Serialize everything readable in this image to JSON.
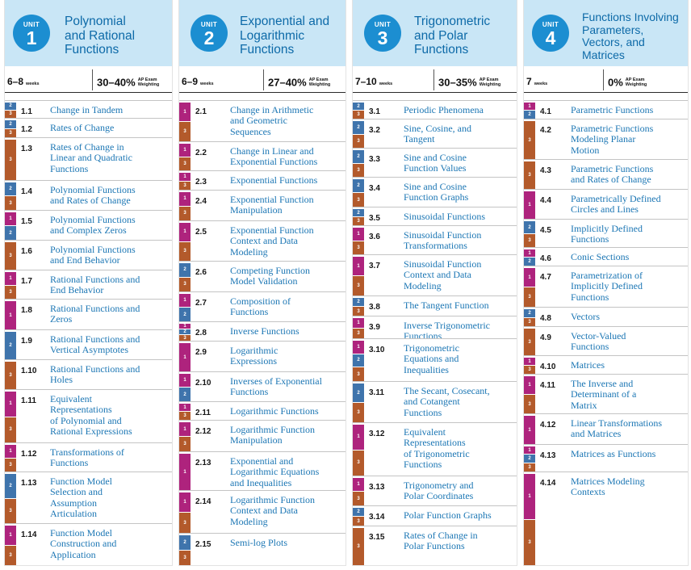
{
  "units": [
    {
      "unit_label": "UNIT",
      "number": "1",
      "title_lines": [
        "Polynomial",
        "and Rational",
        "Functions"
      ],
      "weeks": "6–8",
      "weeks_label": "weeks",
      "weighting": "30–40%",
      "weighting_label": [
        "AP Exam",
        "Weighting"
      ],
      "topics": [
        {
          "num": "1.1",
          "lines": [
            "Change in Tandem"
          ],
          "skills": [
            "2",
            "3"
          ]
        },
        {
          "num": "1.2",
          "lines": [
            "Rates of Change"
          ],
          "skills": [
            "2",
            "3"
          ]
        },
        {
          "num": "1.3",
          "lines": [
            "Rates of Change in",
            "Linear and Quadratic",
            "Functions"
          ],
          "skills": [
            "3"
          ]
        },
        {
          "num": "1.4",
          "lines": [
            "Polynomial Functions",
            "and Rates of Change"
          ],
          "skills": [
            "2",
            "3"
          ]
        },
        {
          "num": "1.5",
          "lines": [
            "Polynomial Functions",
            "and Complex Zeros"
          ],
          "skills": [
            "1",
            "2"
          ]
        },
        {
          "num": "1.6",
          "lines": [
            "Polynomial Functions",
            "and End Behavior"
          ],
          "skills": [
            "3"
          ]
        },
        {
          "num": "1.7",
          "lines": [
            "Rational Functions and",
            "End Behavior"
          ],
          "skills": [
            "1",
            "3"
          ]
        },
        {
          "num": "1.8",
          "lines": [
            "Rational Functions and",
            "Zeros"
          ],
          "skills": [
            "1"
          ]
        },
        {
          "num": "1.9",
          "lines": [
            "Rational Functions and",
            "Vertical Asymptotes"
          ],
          "skills": [
            "2"
          ]
        },
        {
          "num": "1.10",
          "lines": [
            "Rational Functions and",
            "Holes"
          ],
          "skills": [
            "3"
          ]
        },
        {
          "num": "1.11",
          "lines": [
            "Equivalent",
            "Representations",
            "of Polynomial and",
            "Rational Expressions"
          ],
          "skills": [
            "1",
            "3"
          ]
        },
        {
          "num": "1.12",
          "lines": [
            "Transformations of",
            "Functions"
          ],
          "skills": [
            "1",
            "3"
          ]
        },
        {
          "num": "1.13",
          "lines": [
            "Function Model",
            "Selection and",
            "Assumption",
            "Articulation"
          ],
          "skills": [
            "2",
            "3"
          ]
        },
        {
          "num": "1.14",
          "lines": [
            "Function Model",
            "Construction and",
            "Application"
          ],
          "skills": [
            "1",
            "3"
          ]
        }
      ]
    },
    {
      "unit_label": "UNIT",
      "number": "2",
      "title_lines": [
        "Exponential and",
        "Logarithmic",
        "Functions"
      ],
      "weeks": "6–9",
      "weeks_label": "weeks",
      "weighting": "27–40%",
      "weighting_label": [
        "AP Exam",
        "Weighting"
      ],
      "topics": [
        {
          "num": "2.1",
          "lines": [
            "Change in Arithmetic",
            "and Geometric",
            "Sequences"
          ],
          "skills": [
            "1",
            "3"
          ]
        },
        {
          "num": "2.2",
          "lines": [
            "Change in Linear and",
            "Exponential Functions"
          ],
          "skills": [
            "1",
            "3"
          ]
        },
        {
          "num": "2.3",
          "lines": [
            "Exponential Functions"
          ],
          "skills": [
            "1",
            "3"
          ]
        },
        {
          "num": "2.4",
          "lines": [
            "Exponential Function",
            "Manipulation"
          ],
          "skills": [
            "1",
            "3"
          ]
        },
        {
          "num": "2.5",
          "lines": [
            "Exponential Function",
            "Context and Data",
            "Modeling"
          ],
          "skills": [
            "1",
            "3"
          ]
        },
        {
          "num": "2.6",
          "lines": [
            "Competing Function",
            "Model Validation"
          ],
          "skills": [
            "2",
            "3"
          ]
        },
        {
          "num": "2.7",
          "lines": [
            "Composition of",
            "Functions"
          ],
          "skills": [
            "1",
            "2"
          ]
        },
        {
          "num": "2.8",
          "lines": [
            "Inverse Functions"
          ],
          "skills": [
            "1",
            "2",
            "3"
          ]
        },
        {
          "num": "2.9",
          "lines": [
            "Logarithmic",
            "Expressions"
          ],
          "skills": [
            "1"
          ]
        },
        {
          "num": "2.10",
          "lines": [
            "Inverses of Exponential",
            "Functions"
          ],
          "skills": [
            "1",
            "2"
          ]
        },
        {
          "num": "2.11",
          "lines": [
            "Logarithmic Functions"
          ],
          "skills": [
            "1",
            "3"
          ]
        },
        {
          "num": "2.12",
          "lines": [
            "Logarithmic Function",
            "Manipulation"
          ],
          "skills": [
            "1",
            "3"
          ]
        },
        {
          "num": "2.13",
          "lines": [
            "Exponential and",
            "Logarithmic Equations",
            "and Inequalities"
          ],
          "skills": [
            "1"
          ]
        },
        {
          "num": "2.14",
          "lines": [
            "Logarithmic Function",
            "Context and Data",
            "Modeling"
          ],
          "skills": [
            "1",
            "3"
          ]
        },
        {
          "num": "2.15",
          "lines": [
            "Semi-log Plots"
          ],
          "skills": [
            "2",
            "3"
          ]
        }
      ]
    },
    {
      "unit_label": "UNIT",
      "number": "3",
      "title_lines": [
        "Trigonometric",
        "and Polar",
        "Functions"
      ],
      "weeks": "7–10",
      "weeks_label": "weeks",
      "weighting": "30–35%",
      "weighting_label": [
        "AP Exam",
        "Weighting"
      ],
      "topics": [
        {
          "num": "3.1",
          "lines": [
            "Periodic Phenomena"
          ],
          "skills": [
            "2",
            "3"
          ]
        },
        {
          "num": "3.2",
          "lines": [
            "Sine, Cosine, and",
            "Tangent"
          ],
          "skills": [
            "2",
            "3"
          ]
        },
        {
          "num": "3.3",
          "lines": [
            "Sine and Cosine",
            "Function Values"
          ],
          "skills": [
            "2",
            "3"
          ]
        },
        {
          "num": "3.4",
          "lines": [
            "Sine and Cosine",
            "Function Graphs"
          ],
          "skills": [
            "2",
            "3"
          ]
        },
        {
          "num": "3.5",
          "lines": [
            "Sinusoidal Functions"
          ],
          "skills": [
            "2",
            "3"
          ]
        },
        {
          "num": "3.6",
          "lines": [
            "Sinusoidal Function",
            "Transformations"
          ],
          "skills": [
            "1",
            "3"
          ]
        },
        {
          "num": "3.7",
          "lines": [
            "Sinusoidal Function",
            "Context and Data",
            "Modeling"
          ],
          "skills": [
            "1",
            "3"
          ]
        },
        {
          "num": "3.8",
          "lines": [
            "The Tangent Function"
          ],
          "skills": [
            "2",
            "3"
          ]
        },
        {
          "num": "3.9",
          "lines": [
            "Inverse Trigonometric",
            "Functions"
          ],
          "skills": [
            "1",
            "3"
          ]
        },
        {
          "num": "3.10",
          "lines": [
            "Trigonometric",
            "Equations and",
            "Inequalities"
          ],
          "skills": [
            "1",
            "2",
            "3"
          ]
        },
        {
          "num": "3.11",
          "lines": [
            "The Secant, Cosecant,",
            "and Cotangent",
            "Functions"
          ],
          "skills": [
            "2",
            "3"
          ]
        },
        {
          "num": "3.12",
          "lines": [
            "Equivalent",
            "Representations",
            "of Trigonometric",
            "Functions"
          ],
          "skills": [
            "1",
            "3"
          ]
        },
        {
          "num": "3.13",
          "lines": [
            "Trigonometry and",
            "Polar Coordinates"
          ],
          "skills": [
            "1",
            "3"
          ]
        },
        {
          "num": "3.14",
          "lines": [
            "Polar Function Graphs"
          ],
          "skills": [
            "2",
            "3"
          ]
        },
        {
          "num": "3.15",
          "lines": [
            "Rates of Change in",
            "Polar Functions"
          ],
          "skills": [
            "3"
          ]
        }
      ]
    },
    {
      "unit_label": "UNIT",
      "number": "4",
      "title_lines": [
        "Functions Involving",
        "Parameters,",
        "Vectors, and",
        "Matrices"
      ],
      "weeks": "7",
      "weeks_label": "weeks",
      "weighting": "0%",
      "weighting_label": [
        "AP Exam",
        "Weighting"
      ],
      "topics": [
        {
          "num": "4.1",
          "lines": [
            "Parametric Functions"
          ],
          "skills": [
            "1",
            "2"
          ]
        },
        {
          "num": "4.2",
          "lines": [
            "Parametric Functions",
            "Modeling Planar",
            "Motion"
          ],
          "skills": [
            "3"
          ]
        },
        {
          "num": "4.3",
          "lines": [
            "Parametric Functions",
            "and Rates of Change"
          ],
          "skills": [
            "3"
          ]
        },
        {
          "num": "4.4",
          "lines": [
            "Parametrically Defined",
            "Circles and Lines"
          ],
          "skills": [
            "1"
          ]
        },
        {
          "num": "4.5",
          "lines": [
            "Implicitly Defined",
            "Functions"
          ],
          "skills": [
            "2",
            "3"
          ]
        },
        {
          "num": "4.6",
          "lines": [
            "Conic Sections"
          ],
          "skills": [
            "1",
            "2"
          ]
        },
        {
          "num": "4.7",
          "lines": [
            "Parametrization of",
            "Implicitly Defined",
            "Functions"
          ],
          "skills": [
            "1",
            "3"
          ]
        },
        {
          "num": "4.8",
          "lines": [
            "Vectors"
          ],
          "skills": [
            "2",
            "3"
          ]
        },
        {
          "num": "4.9",
          "lines": [
            "Vector-Valued",
            "Functions"
          ],
          "skills": [
            "3"
          ]
        },
        {
          "num": "4.10",
          "lines": [
            "Matrices"
          ],
          "skills": [
            "1",
            "3"
          ]
        },
        {
          "num": "4.11",
          "lines": [
            "The Inverse and",
            "Determinant of a",
            "Matrix"
          ],
          "skills": [
            "1",
            "3"
          ]
        },
        {
          "num": "4.12",
          "lines": [
            "Linear Transformations",
            "and Matrices"
          ],
          "skills": [
            "1"
          ]
        },
        {
          "num": "4.13",
          "lines": [
            "Matrices as Functions"
          ],
          "skills": [
            "1",
            "2",
            "3"
          ]
        },
        {
          "num": "4.14",
          "lines": [
            "Matrices Modeling",
            "Contexts"
          ],
          "skills": [
            "1",
            "3"
          ]
        }
      ]
    }
  ]
}
